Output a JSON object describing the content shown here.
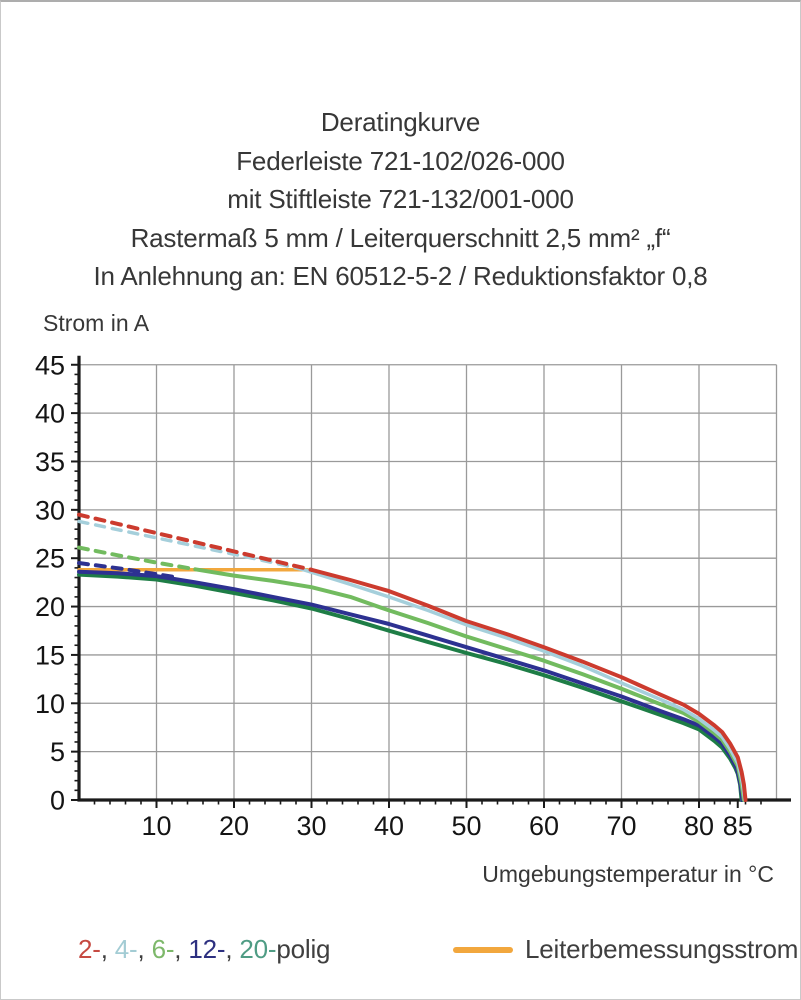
{
  "title": {
    "lines": [
      "Deratingkurve",
      "Federleiste 721-102/026-000",
      "mit Stiftleiste 721-132/001-000",
      "Rastermaß 5 mm / Leiterquerschnitt 2,5 mm² „f“",
      "In Anlehnung an: EN 60512-5-2 / Reduktionsfaktor 0,8"
    ]
  },
  "chart_data": {
    "type": "line",
    "ylabel": "Strom in A",
    "xlabel": "Umgebungstemperatur in °C",
    "xlim": [
      0,
      90
    ],
    "ylim": [
      0,
      45
    ],
    "grid": true,
    "grid_color": "#9a9a9a",
    "axis_color": "#1a1a1a",
    "x_gridlines": [
      10,
      20,
      30,
      40,
      50,
      60,
      70,
      80,
      90
    ],
    "y_gridlines": [
      5,
      10,
      15,
      20,
      25,
      30,
      35,
      40,
      45
    ],
    "x_minor_step": 2,
    "y_minor_step": 1,
    "x_tick_labels": [
      {
        "value": 10,
        "label": "10"
      },
      {
        "value": 20,
        "label": "20"
      },
      {
        "value": 30,
        "label": "30"
      },
      {
        "value": 40,
        "label": "40"
      },
      {
        "value": 50,
        "label": "50"
      },
      {
        "value": 60,
        "label": "60"
      },
      {
        "value": 70,
        "label": "70"
      },
      {
        "value": 80,
        "label": "80"
      },
      {
        "value": 85,
        "label": "85"
      }
    ],
    "y_tick_labels": [
      {
        "value": 0,
        "label": "0"
      },
      {
        "value": 5,
        "label": "5"
      },
      {
        "value": 10,
        "label": "10"
      },
      {
        "value": 15,
        "label": "15"
      },
      {
        "value": 20,
        "label": "20"
      },
      {
        "value": 25,
        "label": "25"
      },
      {
        "value": 30,
        "label": "30"
      },
      {
        "value": 35,
        "label": "35"
      },
      {
        "value": 40,
        "label": "40"
      },
      {
        "value": 45,
        "label": "45"
      }
    ],
    "series": [
      {
        "name": "Leiterbemessungsstrom",
        "color": "#f2a73d",
        "width": 3.5,
        "dashed": [],
        "solid": [
          [
            0,
            23.8
          ],
          [
            29.5,
            23.8
          ]
        ]
      },
      {
        "name": "20-polig",
        "color": "#1e7d46",
        "width": 4,
        "dashed": [],
        "solid": [
          [
            0,
            23.3
          ],
          [
            5,
            23.1
          ],
          [
            10,
            22.8
          ],
          [
            15,
            22.15
          ],
          [
            20,
            21.4
          ],
          [
            25,
            20.65
          ],
          [
            30,
            19.8
          ],
          [
            35,
            18.7
          ],
          [
            40,
            17.5
          ],
          [
            45,
            16.35
          ],
          [
            50,
            15.2
          ],
          [
            55,
            14.1
          ],
          [
            60,
            12.9
          ],
          [
            65,
            11.6
          ],
          [
            70,
            10.2
          ],
          [
            75,
            8.8
          ],
          [
            78,
            7.95
          ],
          [
            80,
            7.3
          ],
          [
            82,
            6.1
          ],
          [
            83,
            5.4
          ],
          [
            84,
            4.3
          ],
          [
            84.7,
            3.3
          ],
          [
            85,
            2.7
          ],
          [
            85.3,
            1.6
          ],
          [
            85.5,
            0
          ]
        ]
      },
      {
        "name": "12-polig",
        "color": "#2d3191",
        "width": 4,
        "dashed": [
          [
            0,
            24.5
          ],
          [
            6,
            23.85
          ],
          [
            12,
            23.1
          ]
        ],
        "solid": [
          [
            0,
            23.6
          ],
          [
            5,
            23.45
          ],
          [
            10,
            23.15
          ],
          [
            15,
            22.5
          ],
          [
            20,
            21.8
          ],
          [
            25,
            21.0
          ],
          [
            30,
            20.2
          ],
          [
            35,
            19.2
          ],
          [
            40,
            18.2
          ],
          [
            45,
            17.0
          ],
          [
            50,
            15.8
          ],
          [
            55,
            14.6
          ],
          [
            60,
            13.4
          ],
          [
            65,
            12.05
          ],
          [
            70,
            10.7
          ],
          [
            75,
            9.2
          ],
          [
            78,
            8.35
          ],
          [
            80,
            7.7
          ],
          [
            82,
            6.5
          ],
          [
            83,
            5.8
          ],
          [
            84,
            4.6
          ],
          [
            84.8,
            3.4
          ],
          [
            85.1,
            2.6
          ],
          [
            85.4,
            1.4
          ],
          [
            85.6,
            0
          ]
        ]
      },
      {
        "name": "6-polig",
        "color": "#72bb5f",
        "width": 4,
        "dashed": [
          [
            0,
            26.1
          ],
          [
            5,
            25.3
          ],
          [
            10,
            24.55
          ],
          [
            15,
            23.85
          ]
        ],
        "solid": [
          [
            15,
            23.85
          ],
          [
            20,
            23.2
          ],
          [
            25,
            22.65
          ],
          [
            30,
            22.0
          ],
          [
            35,
            21.0
          ],
          [
            40,
            19.6
          ],
          [
            45,
            18.3
          ],
          [
            50,
            16.9
          ],
          [
            55,
            15.65
          ],
          [
            60,
            14.4
          ],
          [
            65,
            13.0
          ],
          [
            70,
            11.5
          ],
          [
            75,
            9.9
          ],
          [
            78,
            9.0
          ],
          [
            80,
            8.1
          ],
          [
            82,
            6.9
          ],
          [
            83,
            6.2
          ],
          [
            84,
            5.0
          ],
          [
            85,
            3.5
          ],
          [
            85.3,
            2.4
          ],
          [
            85.5,
            1.6
          ],
          [
            85.8,
            0
          ]
        ]
      },
      {
        "name": "4-polig",
        "color": "#a5cfdb",
        "width": 3.5,
        "dashed": [
          [
            0,
            28.8
          ],
          [
            5,
            27.95
          ],
          [
            10,
            27.1
          ],
          [
            15,
            26.25
          ],
          [
            20,
            25.4
          ],
          [
            25,
            24.55
          ],
          [
            29,
            23.8
          ]
        ],
        "solid": [
          [
            29,
            23.8
          ],
          [
            35,
            22.3
          ],
          [
            40,
            21.0
          ],
          [
            45,
            19.6
          ],
          [
            50,
            18.1
          ],
          [
            55,
            16.8
          ],
          [
            60,
            15.4
          ],
          [
            65,
            13.85
          ],
          [
            70,
            12.1
          ],
          [
            75,
            10.4
          ],
          [
            78,
            9.35
          ],
          [
            80,
            8.4
          ],
          [
            82,
            7.2
          ],
          [
            83,
            6.5
          ],
          [
            84,
            5.3
          ],
          [
            85,
            3.8
          ],
          [
            85.4,
            2.5
          ],
          [
            85.6,
            1.7
          ],
          [
            85.9,
            0
          ]
        ]
      },
      {
        "name": "2-polig",
        "color": "#cc3b2e",
        "width": 4,
        "dashed": [
          [
            0,
            29.5
          ],
          [
            5,
            28.55
          ],
          [
            10,
            27.6
          ],
          [
            15,
            26.65
          ],
          [
            20,
            25.7
          ],
          [
            25,
            24.75
          ],
          [
            30,
            23.8
          ]
        ],
        "solid": [
          [
            30,
            23.8
          ],
          [
            35,
            22.75
          ],
          [
            40,
            21.6
          ],
          [
            45,
            20.1
          ],
          [
            50,
            18.5
          ],
          [
            55,
            17.2
          ],
          [
            60,
            15.8
          ],
          [
            65,
            14.3
          ],
          [
            70,
            12.7
          ],
          [
            75,
            10.9
          ],
          [
            78,
            9.85
          ],
          [
            80,
            8.9
          ],
          [
            82,
            7.7
          ],
          [
            83,
            7.0
          ],
          [
            84,
            5.85
          ],
          [
            85,
            4.4
          ],
          [
            85.5,
            2.9
          ],
          [
            85.8,
            1.6
          ],
          [
            86,
            0
          ]
        ]
      }
    ]
  },
  "legend": {
    "pole_items": [
      {
        "label": "2-",
        "color": "#c64a42"
      },
      {
        "label": "4-",
        "color": "#a3ccd4"
      },
      {
        "label": "6-",
        "color": "#7db86a"
      },
      {
        "label": "12-",
        "color": "#2d3080"
      },
      {
        "label": "20-",
        "color": "#4f9c84"
      }
    ],
    "separator": ", ",
    "suffix": "polig",
    "suffix_color": "#3f3f3f",
    "rated": {
      "label": "Leiterbemessungsstrom",
      "color": "#f2a73d"
    }
  }
}
